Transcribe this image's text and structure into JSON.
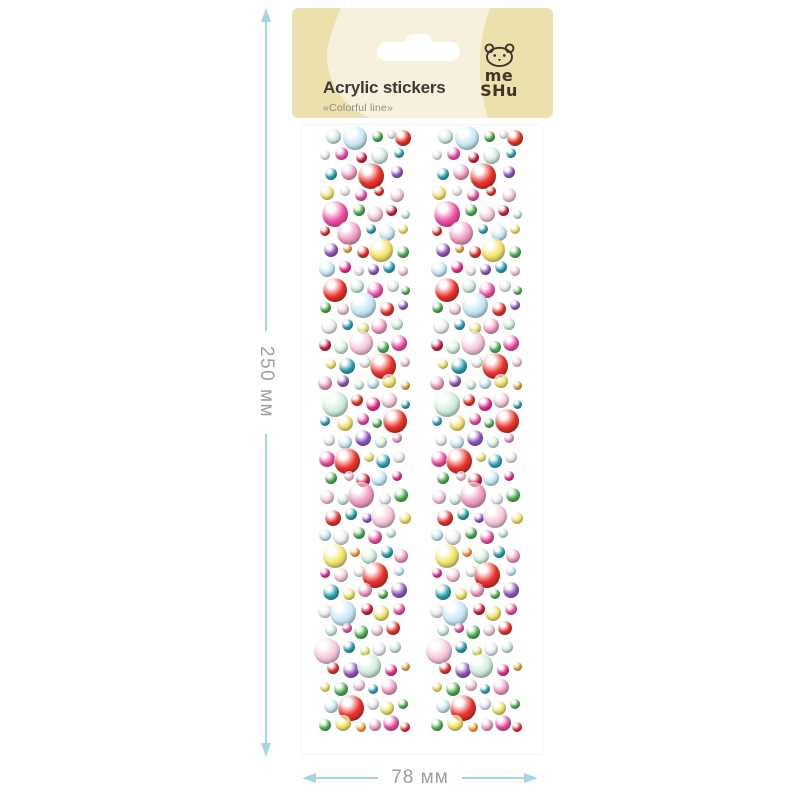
{
  "product": {
    "title": "Acrylic stickers",
    "subtitle": "«Colorful line»",
    "brand": {
      "name": "MESHU",
      "line1": "me",
      "line2": "SHu"
    }
  },
  "dimensions": {
    "height_label": "250 мм",
    "width_label": "78 мм"
  },
  "colors": {
    "dim_line": "#a8d5e5",
    "dim_text": "#9b9fa2",
    "card_base": "#ece0ad",
    "card_light": "#f6f0dc",
    "title_text": "#3b3a36",
    "subtitle_text": "#8d8c86",
    "brand_text": "#3e352c"
  },
  "sheet": {
    "palette": [
      "#e8322b",
      "#cf2140",
      "#ef4fa5",
      "#f6c6da",
      "#f09cc2",
      "#f2e468",
      "#cfeeda",
      "#c6e7f5",
      "#2fa3b5",
      "#4eb052",
      "#9059bd",
      "#ededed",
      "#e8318e",
      "#f2a13c"
    ],
    "beads": [
      [
        14,
        8,
        15,
        6
      ],
      [
        36,
        10,
        24,
        7
      ],
      [
        58,
        8,
        11,
        9
      ],
      [
        72,
        6,
        9,
        11
      ],
      [
        84,
        10,
        16,
        0
      ],
      [
        6,
        27,
        10,
        11
      ],
      [
        22,
        25,
        13,
        2
      ],
      [
        42,
        29,
        11,
        1
      ],
      [
        60,
        27,
        17,
        6
      ],
      [
        80,
        25,
        10,
        8
      ],
      [
        12,
        46,
        12,
        8
      ],
      [
        30,
        44,
        16,
        4
      ],
      [
        52,
        48,
        26,
        0
      ],
      [
        78,
        44,
        12,
        10
      ],
      [
        8,
        65,
        14,
        5
      ],
      [
        26,
        63,
        10,
        11
      ],
      [
        42,
        67,
        12,
        2
      ],
      [
        60,
        63,
        10,
        0
      ],
      [
        78,
        67,
        14,
        3
      ],
      [
        16,
        86,
        26,
        2
      ],
      [
        40,
        82,
        12,
        9
      ],
      [
        56,
        86,
        16,
        3
      ],
      [
        72,
        82,
        11,
        1
      ],
      [
        86,
        86,
        9,
        7
      ],
      [
        6,
        103,
        10,
        0
      ],
      [
        30,
        105,
        24,
        4
      ],
      [
        52,
        101,
        10,
        8
      ],
      [
        68,
        105,
        16,
        7
      ],
      [
        84,
        101,
        10,
        5
      ],
      [
        12,
        122,
        14,
        10
      ],
      [
        28,
        120,
        9,
        13
      ],
      [
        44,
        124,
        12,
        0
      ],
      [
        62,
        122,
        24,
        5
      ],
      [
        84,
        124,
        12,
        9
      ],
      [
        8,
        141,
        16,
        7
      ],
      [
        26,
        139,
        12,
        12
      ],
      [
        40,
        143,
        10,
        11
      ],
      [
        54,
        141,
        11,
        10
      ],
      [
        70,
        139,
        12,
        8
      ],
      [
        84,
        143,
        10,
        3
      ],
      [
        16,
        162,
        24,
        0
      ],
      [
        38,
        158,
        14,
        6
      ],
      [
        56,
        162,
        16,
        2
      ],
      [
        74,
        158,
        12,
        11
      ],
      [
        86,
        162,
        9,
        9
      ],
      [
        6,
        179,
        11,
        9
      ],
      [
        24,
        181,
        12,
        3
      ],
      [
        44,
        177,
        26,
        7
      ],
      [
        68,
        181,
        14,
        0
      ],
      [
        84,
        177,
        10,
        10
      ],
      [
        10,
        198,
        16,
        11
      ],
      [
        28,
        196,
        11,
        8
      ],
      [
        44,
        200,
        12,
        5
      ],
      [
        60,
        198,
        16,
        4
      ],
      [
        78,
        196,
        12,
        6
      ],
      [
        6,
        217,
        12,
        1
      ],
      [
        22,
        219,
        14,
        6
      ],
      [
        42,
        215,
        24,
        3
      ],
      [
        64,
        219,
        12,
        9
      ],
      [
        80,
        215,
        16,
        2
      ],
      [
        12,
        236,
        10,
        5
      ],
      [
        28,
        238,
        16,
        8
      ],
      [
        46,
        234,
        12,
        11
      ],
      [
        64,
        238,
        26,
        0
      ],
      [
        86,
        234,
        10,
        3
      ],
      [
        6,
        255,
        14,
        4
      ],
      [
        24,
        253,
        12,
        10
      ],
      [
        40,
        257,
        10,
        6
      ],
      [
        54,
        255,
        12,
        7
      ],
      [
        70,
        253,
        14,
        5
      ],
      [
        86,
        257,
        9,
        13
      ],
      [
        16,
        276,
        26,
        6
      ],
      [
        38,
        272,
        12,
        0
      ],
      [
        54,
        276,
        14,
        12
      ],
      [
        70,
        272,
        16,
        3
      ],
      [
        86,
        276,
        9,
        8
      ],
      [
        6,
        293,
        10,
        8
      ],
      [
        26,
        295,
        16,
        5
      ],
      [
        44,
        291,
        12,
        2
      ],
      [
        58,
        295,
        10,
        9
      ],
      [
        76,
        293,
        24,
        0
      ],
      [
        10,
        312,
        12,
        11
      ],
      [
        26,
        314,
        14,
        7
      ],
      [
        44,
        310,
        16,
        10
      ],
      [
        62,
        314,
        12,
        6
      ],
      [
        78,
        310,
        10,
        4
      ],
      [
        8,
        331,
        16,
        2
      ],
      [
        28,
        333,
        26,
        0
      ],
      [
        50,
        329,
        10,
        5
      ],
      [
        64,
        333,
        14,
        8
      ],
      [
        80,
        329,
        12,
        11
      ],
      [
        12,
        350,
        12,
        9
      ],
      [
        30,
        348,
        10,
        3
      ],
      [
        44,
        352,
        14,
        1
      ],
      [
        60,
        350,
        16,
        7
      ],
      [
        78,
        348,
        10,
        12
      ],
      [
        8,
        369,
        14,
        3
      ],
      [
        24,
        371,
        12,
        6
      ],
      [
        42,
        367,
        26,
        4
      ],
      [
        66,
        371,
        12,
        11
      ],
      [
        82,
        367,
        14,
        9
      ],
      [
        14,
        390,
        16,
        0
      ],
      [
        32,
        386,
        12,
        8
      ],
      [
        48,
        390,
        10,
        10
      ],
      [
        64,
        388,
        24,
        3
      ],
      [
        86,
        390,
        12,
        5
      ],
      [
        6,
        407,
        12,
        7
      ],
      [
        22,
        409,
        16,
        11
      ],
      [
        40,
        405,
        12,
        9
      ],
      [
        56,
        409,
        14,
        2
      ],
      [
        72,
        405,
        10,
        6
      ],
      [
        16,
        428,
        24,
        5
      ],
      [
        36,
        424,
        10,
        13
      ],
      [
        50,
        428,
        16,
        6
      ],
      [
        68,
        424,
        12,
        8
      ],
      [
        82,
        428,
        14,
        4
      ],
      [
        6,
        445,
        10,
        12
      ],
      [
        22,
        447,
        14,
        3
      ],
      [
        40,
        443,
        12,
        11
      ],
      [
        56,
        447,
        26,
        0
      ],
      [
        80,
        443,
        10,
        7
      ],
      [
        12,
        464,
        16,
        8
      ],
      [
        30,
        466,
        12,
        5
      ],
      [
        46,
        462,
        14,
        4
      ],
      [
        64,
        466,
        10,
        9
      ],
      [
        80,
        462,
        16,
        10
      ],
      [
        6,
        483,
        14,
        11
      ],
      [
        24,
        485,
        26,
        7
      ],
      [
        48,
        481,
        12,
        1
      ],
      [
        62,
        485,
        16,
        5
      ],
      [
        80,
        481,
        12,
        2
      ],
      [
        12,
        502,
        12,
        6
      ],
      [
        28,
        500,
        10,
        2
      ],
      [
        42,
        504,
        14,
        9
      ],
      [
        58,
        502,
        12,
        3
      ],
      [
        74,
        500,
        14,
        0
      ],
      [
        8,
        523,
        26,
        3
      ],
      [
        30,
        519,
        12,
        8
      ],
      [
        46,
        523,
        10,
        5
      ],
      [
        60,
        521,
        14,
        11
      ],
      [
        76,
        519,
        12,
        6
      ],
      [
        14,
        540,
        12,
        0
      ],
      [
        32,
        542,
        16,
        10
      ],
      [
        50,
        538,
        24,
        6
      ],
      [
        72,
        542,
        12,
        12
      ],
      [
        86,
        538,
        9,
        13
      ],
      [
        6,
        559,
        10,
        5
      ],
      [
        22,
        561,
        14,
        9
      ],
      [
        40,
        557,
        12,
        3
      ],
      [
        54,
        561,
        10,
        8
      ],
      [
        70,
        559,
        16,
        4
      ],
      [
        12,
        578,
        14,
        7
      ],
      [
        32,
        580,
        26,
        0
      ],
      [
        54,
        576,
        12,
        11
      ],
      [
        68,
        580,
        14,
        5
      ],
      [
        84,
        576,
        10,
        9
      ],
      [
        6,
        597,
        12,
        9
      ],
      [
        24,
        595,
        16,
        5
      ],
      [
        42,
        599,
        10,
        13
      ],
      [
        56,
        597,
        12,
        4
      ],
      [
        72,
        595,
        16,
        2
      ],
      [
        86,
        599,
        10,
        0
      ]
    ]
  }
}
